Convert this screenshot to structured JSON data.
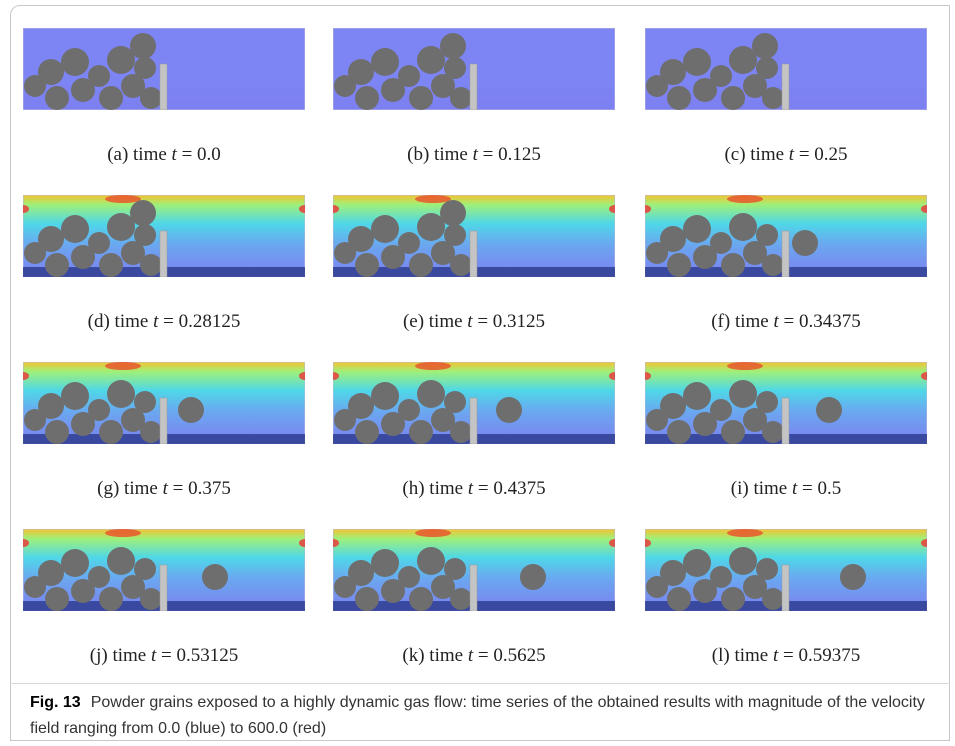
{
  "figure": {
    "panels": [
      {
        "prefix": "(a) time",
        "variable": "t",
        "suffix": "= 0.0"
      },
      {
        "prefix": "(b) time",
        "variable": "t",
        "suffix": "= 0.125"
      },
      {
        "prefix": "(c) time",
        "variable": "t",
        "suffix": "= 0.25"
      },
      {
        "prefix": "(d) time",
        "variable": "t",
        "suffix": "= 0.28125"
      },
      {
        "prefix": "(e) time",
        "variable": "t",
        "suffix": "= 0.3125"
      },
      {
        "prefix": "(f) time",
        "variable": "t",
        "suffix": "= 0.34375"
      },
      {
        "prefix": "(g) time",
        "variable": "t",
        "suffix": "= 0.375"
      },
      {
        "prefix": "(h) time",
        "variable": "t",
        "suffix": "= 0.4375"
      },
      {
        "prefix": "(i) time",
        "variable": "t",
        "suffix": "= 0.5"
      },
      {
        "prefix": "(j) time",
        "variable": "t",
        "suffix": "= 0.53125"
      },
      {
        "prefix": "(k) time",
        "variable": "t",
        "suffix": "= 0.5625"
      },
      {
        "prefix": "(l) time",
        "variable": "t",
        "suffix": "= 0.59375"
      }
    ],
    "caption": {
      "label": "Fig. 13",
      "text": "Powder grains exposed to a highly dynamic gas flow: time series of the obtained results with magnitude of the velocity field ranging from 0.0 (blue) to 600.0 (red)"
    }
  }
}
